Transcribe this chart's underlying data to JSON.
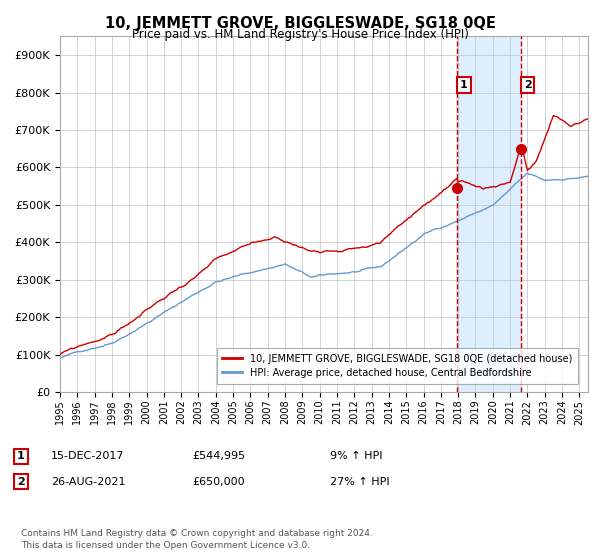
{
  "title": "10, JEMMETT GROVE, BIGGLESWADE, SG18 0QE",
  "subtitle": "Price paid vs. HM Land Registry's House Price Index (HPI)",
  "legend_line1": "10, JEMMETT GROVE, BIGGLESWADE, SG18 0QE (detached house)",
  "legend_line2": "HPI: Average price, detached house, Central Bedfordshire",
  "annotation1_label": "1",
  "annotation1_date": "15-DEC-2017",
  "annotation1_price": "£544,995",
  "annotation1_hpi": "9% ↑ HPI",
  "annotation2_label": "2",
  "annotation2_date": "26-AUG-2021",
  "annotation2_price": "£650,000",
  "annotation2_hpi": "27% ↑ HPI",
  "footer": "Contains HM Land Registry data © Crown copyright and database right 2024.\nThis data is licensed under the Open Government Licence v3.0.",
  "red_color": "#cc0000",
  "blue_color": "#6699cc",
  "background_color": "#ffffff",
  "grid_color": "#cccccc",
  "shade_color": "#ddeeff",
  "ylim": [
    0,
    950000
  ],
  "yticks": [
    0,
    100000,
    200000,
    300000,
    400000,
    500000,
    600000,
    700000,
    800000,
    900000
  ],
  "purchase1_year": 2017.96,
  "purchase1_value": 544995,
  "purchase2_year": 2021.65,
  "purchase2_value": 650000,
  "xmin": 1995.0,
  "xmax": 2025.5
}
